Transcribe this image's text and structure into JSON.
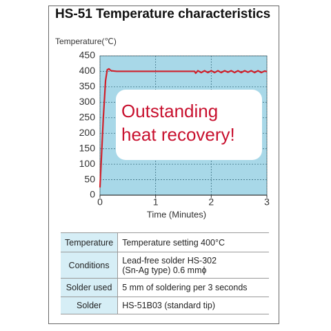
{
  "chart_data": {
    "type": "line",
    "title": "HS-51 Temperature characteristics",
    "ylabel": "Temperature(℃)",
    "xlabel": "Time (Minutes)",
    "annotation": "Outstanding heat recovery!",
    "x": [
      0,
      0.02,
      0.06,
      0.1,
      0.13,
      0.16,
      0.2,
      0.3,
      1.7,
      1.72,
      1.76,
      1.82,
      1.88,
      1.94,
      2.0,
      2.06,
      2.12,
      2.18,
      2.24,
      2.3,
      2.36,
      2.42,
      2.48,
      2.54,
      2.6,
      2.66,
      2.72,
      2.78,
      2.84,
      2.9,
      2.96,
      3.0
    ],
    "series": [
      {
        "name": "Temperature",
        "color": "#d0202a",
        "values": [
          25,
          100,
          250,
          370,
          405,
          408,
          402,
          400,
          400,
          394,
          402,
          396,
          402,
          396,
          402,
          396,
          402,
          396,
          402,
          397,
          402,
          396,
          402,
          396,
          402,
          397,
          402,
          396,
          402,
          396,
          401,
          399
        ]
      }
    ],
    "xlim": [
      0,
      3
    ],
    "xticks": [
      0,
      1,
      2,
      3
    ],
    "ylim": [
      0,
      450
    ],
    "yticks": [
      0,
      50,
      100,
      150,
      200,
      250,
      300,
      350,
      400,
      450
    ],
    "grid": true
  },
  "table": {
    "rows": [
      [
        "Temperature",
        "Temperature setting 400°C"
      ],
      [
        "Conditions",
        "Lead-free solder HS-302\n(Sn-Ag type) 0.6 mmϕ"
      ],
      [
        "Solder used",
        "5 mm of soldering per 3 seconds"
      ],
      [
        "Solder",
        "HS-51B03 (standard tip)"
      ]
    ]
  }
}
